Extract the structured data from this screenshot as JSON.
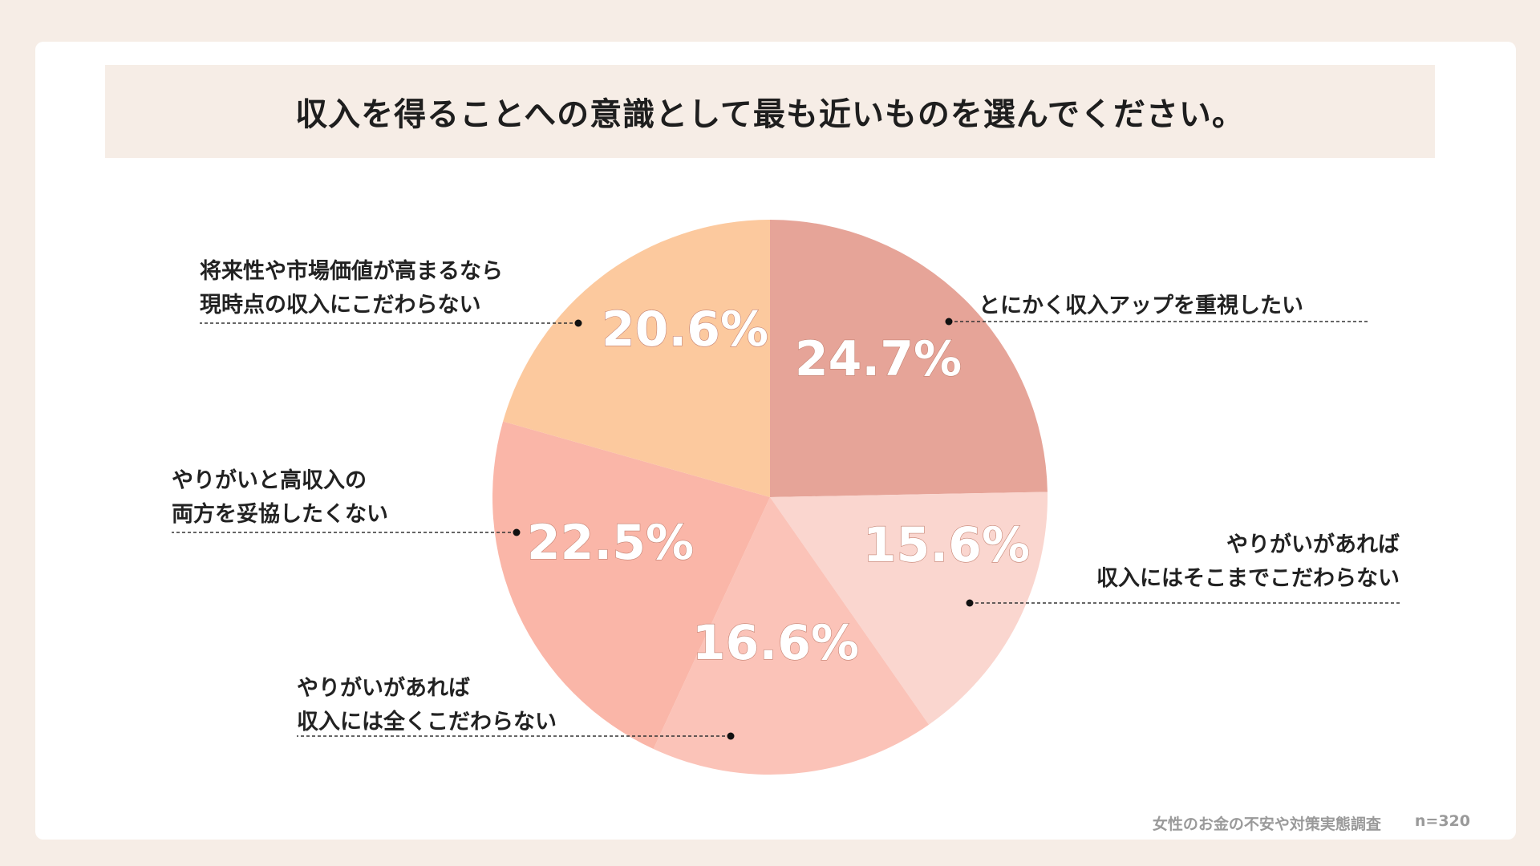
{
  "chart_data": {
    "type": "pie",
    "title": "収入を得ることへの意識として最も近いものを選んでください。",
    "slices": [
      {
        "lines": [
          "とにかく収入アップを重視したい"
        ],
        "value": 24.7,
        "pct_label": "24.7%",
        "color": "#e6a498"
      },
      {
        "lines": [
          "やりがいがあれば",
          "収入にはそこまでこだわらない"
        ],
        "value": 15.6,
        "pct_label": "15.6%",
        "color": "#fad6cf"
      },
      {
        "lines": [
          "やりがいがあれば",
          "収入には全くこだわらない"
        ],
        "value": 16.6,
        "pct_label": "16.6%",
        "color": "#fbc3b8"
      },
      {
        "lines": [
          "やりがいと高収入の",
          "両方を妥協したくない"
        ],
        "value": 22.5,
        "pct_label": "22.5%",
        "color": "#fab6a8"
      },
      {
        "lines": [
          "将来性や市場価値が高まるなら",
          "現時点の収入にこだわらない"
        ],
        "value": 20.6,
        "pct_label": "20.6%",
        "color": "#fcc99e"
      }
    ]
  },
  "footer": {
    "source": "女性のお金の不安や対策実態調査",
    "n": "n=320"
  }
}
